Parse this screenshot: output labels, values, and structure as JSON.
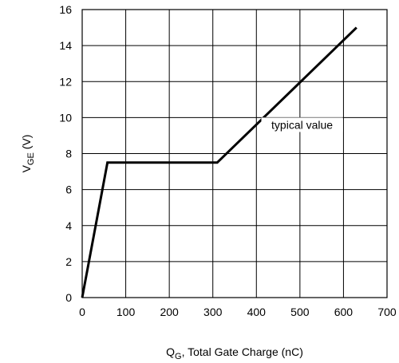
{
  "chart_data": {
    "type": "line",
    "title": "",
    "xlabel": {
      "main": "Q",
      "sub": "G",
      "rest": ", Total Gate Charge (nC)"
    },
    "ylabel": {
      "main": "V",
      "sub": "GE",
      "rest": " (V)"
    },
    "xlim": [
      0,
      700
    ],
    "ylim": [
      0,
      16
    ],
    "x_ticks": [
      0,
      100,
      200,
      300,
      400,
      500,
      600,
      700
    ],
    "y_ticks": [
      0,
      2,
      4,
      6,
      8,
      10,
      12,
      14,
      16
    ],
    "grid": true,
    "series": [
      {
        "x": [
          0,
          58,
          310,
          630
        ],
        "y": [
          0,
          7.5,
          7.5,
          15
        ],
        "color": "#000000"
      }
    ],
    "annotations": [
      {
        "text": "typical value",
        "x": 505,
        "y": 9.6
      }
    ]
  }
}
